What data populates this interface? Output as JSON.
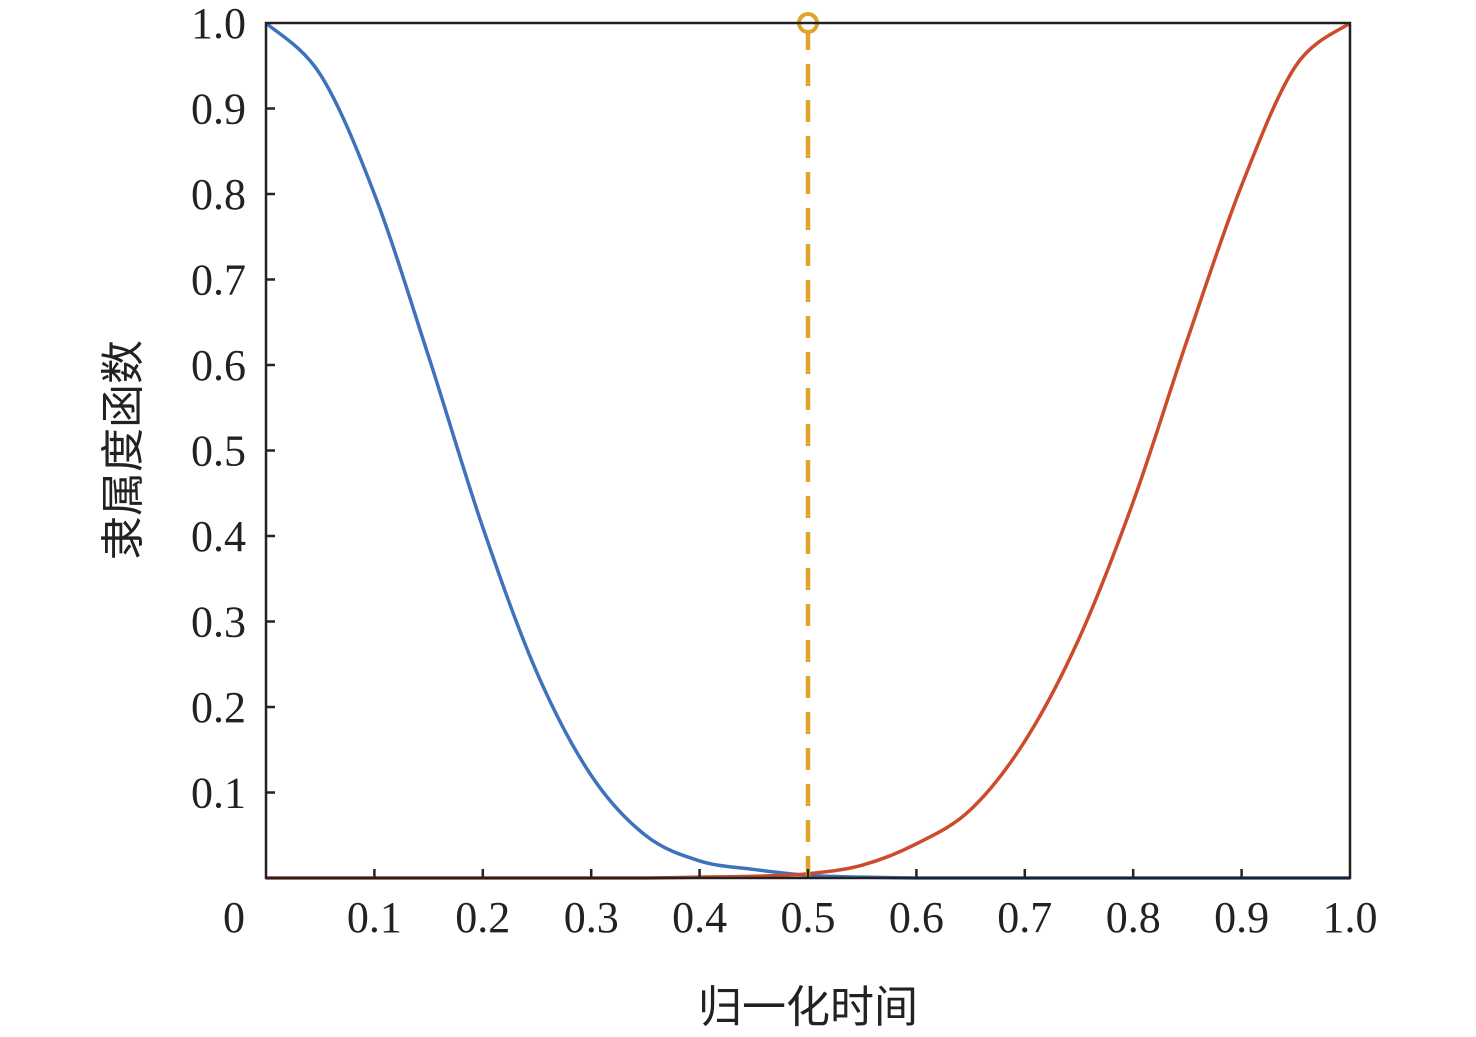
{
  "chart_data": {
    "type": "line",
    "title": "",
    "xlabel": "归一化时间",
    "ylabel": "隶属度函数",
    "xlim": [
      0,
      1
    ],
    "ylim": [
      0,
      1
    ],
    "x_ticks": [
      "0",
      "0.1",
      "0.2",
      "0.3",
      "0.4",
      "0.5",
      "0.6",
      "0.7",
      "0.8",
      "0.9",
      "1.0"
    ],
    "y_ticks": [
      "0.1",
      "0.2",
      "0.3",
      "0.4",
      "0.5",
      "0.6",
      "0.7",
      "0.8",
      "0.9",
      "1.0"
    ],
    "grid": false,
    "legend": "none",
    "series": [
      {
        "color": "#3f72bd",
        "x": [
          0,
          0.05,
          0.1,
          0.15,
          0.2,
          0.25,
          0.3,
          0.35,
          0.4,
          0.45,
          0.5,
          0.55,
          0.6,
          0.65,
          0.7,
          0.75,
          0.8,
          0.85,
          0.9,
          0.95,
          1.0
        ],
        "y": [
          1.0,
          0.94,
          0.8,
          0.61,
          0.41,
          0.24,
          0.12,
          0.05,
          0.02,
          0.01,
          0.003,
          0.001,
          0,
          0,
          0,
          0,
          0,
          0,
          0,
          0,
          0
        ]
      },
      {
        "color": "#cc4b2c",
        "x": [
          0,
          0.05,
          0.1,
          0.15,
          0.2,
          0.25,
          0.3,
          0.35,
          0.4,
          0.45,
          0.5,
          0.55,
          0.6,
          0.65,
          0.7,
          0.75,
          0.8,
          0.85,
          0.9,
          0.95,
          1.0
        ],
        "y": [
          0,
          0,
          0,
          0,
          0,
          0,
          0,
          0,
          0.001,
          0.002,
          0.005,
          0.015,
          0.04,
          0.08,
          0.16,
          0.28,
          0.44,
          0.63,
          0.81,
          0.95,
          1.0
        ]
      }
    ],
    "marker_line": {
      "x": 0.5,
      "y_top": 1.0,
      "color": "#e0a42b",
      "style": "dashed",
      "marker": "circle"
    }
  }
}
